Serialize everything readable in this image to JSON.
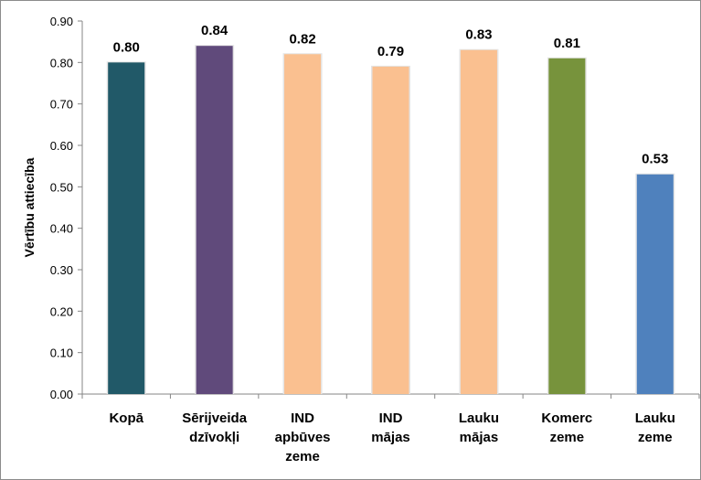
{
  "chart_data": {
    "type": "bar",
    "title": "",
    "xlabel": "",
    "ylabel": "Vērtību attiecība",
    "ylim": [
      0,
      0.9
    ],
    "ytick_step": 0.1,
    "grid": false,
    "categories": [
      [
        "Kopā"
      ],
      [
        "Sērijveida",
        "dzīvokļi"
      ],
      [
        "IND",
        "apbūves",
        "zeme"
      ],
      [
        "IND",
        "mājas"
      ],
      [
        "Lauku",
        "mājas"
      ],
      [
        "Komerc",
        "zeme"
      ],
      [
        "Lauku",
        "zeme"
      ]
    ],
    "values": [
      0.8,
      0.84,
      0.82,
      0.79,
      0.83,
      0.81,
      0.53
    ],
    "value_labels": [
      "0.80",
      "0.84",
      "0.82",
      "0.79",
      "0.83",
      "0.81",
      "0.53"
    ],
    "colors": [
      "#215968",
      "#604A7B",
      "#FAC090",
      "#FAC090",
      "#FAC090",
      "#77933C",
      "#4F81BD"
    ]
  }
}
